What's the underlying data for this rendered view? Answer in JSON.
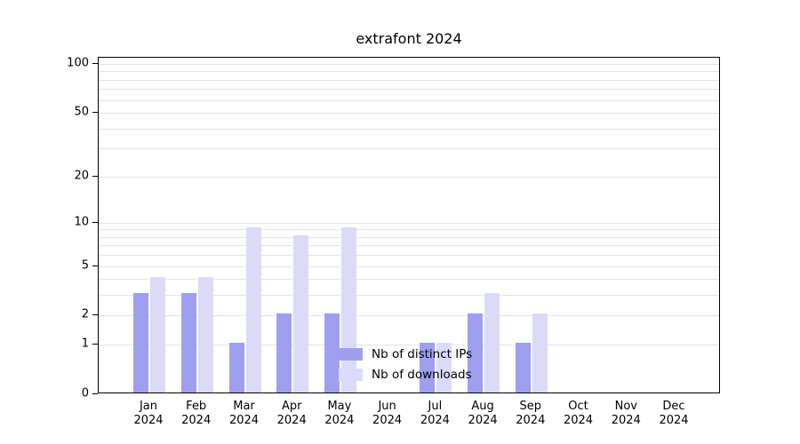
{
  "title": "extrafont 2024",
  "chart_data": {
    "type": "bar",
    "title": "extrafont 2024",
    "y_scale": "log10(1+x)",
    "ylim": [
      0,
      110
    ],
    "grid": true,
    "legend_position": "bottom-center-inside",
    "categories": [
      "Jan",
      "Feb",
      "Mar",
      "Apr",
      "May",
      "Jun",
      "Jul",
      "Aug",
      "Sep",
      "Oct",
      "Nov",
      "Dec"
    ],
    "year_label": "2024",
    "y_ticks": [
      0,
      1,
      2,
      5,
      10,
      20,
      50,
      100
    ],
    "minor_gridlines": [
      1,
      2,
      3,
      4,
      5,
      6,
      7,
      8,
      9,
      10,
      20,
      30,
      40,
      50,
      60,
      70,
      80,
      90,
      100
    ],
    "series": [
      {
        "name": "Nb of distinct IPs",
        "color": "#9f9ff0",
        "values": [
          3,
          3,
          1,
          2,
          2,
          0,
          1,
          2,
          1,
          0,
          0,
          0
        ]
      },
      {
        "name": "Nb of downloads",
        "color": "#dbdbf8",
        "values": [
          4,
          4,
          9,
          8,
          9,
          0,
          1,
          3,
          2,
          0,
          0,
          0
        ]
      }
    ]
  },
  "colors": {
    "axis": "#000000",
    "gridline": "#e4e4e4",
    "background": "#ffffff"
  }
}
